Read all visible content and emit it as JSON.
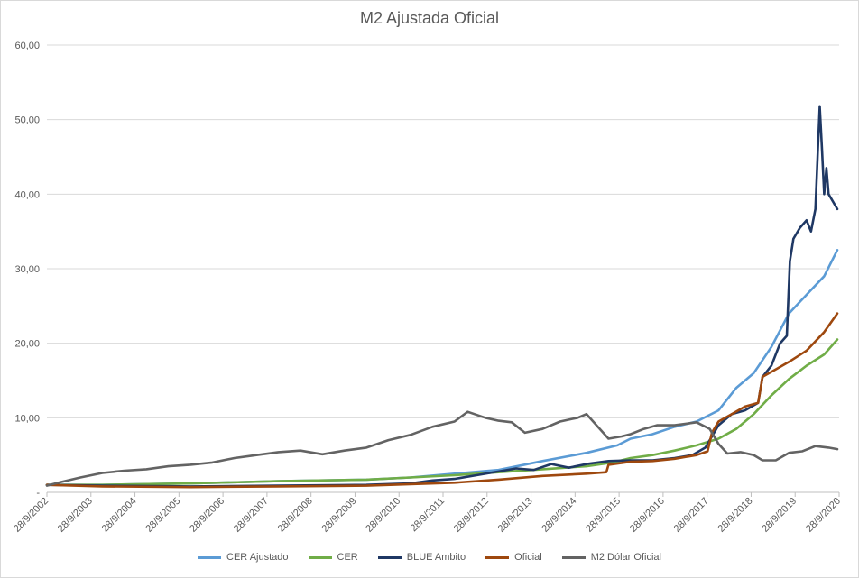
{
  "chart_data": {
    "type": "line",
    "title": "M2 Ajustada Oficial",
    "xlabel": "",
    "ylabel": "",
    "ylim": [
      0,
      60
    ],
    "yticks": [
      "-",
      "10,00",
      "20,00",
      "30,00",
      "40,00",
      "50,00",
      "60,00"
    ],
    "xticks": [
      "28/9/2002",
      "28/9/2003",
      "28/9/2004",
      "28/9/2005",
      "28/9/2006",
      "28/9/2007",
      "28/9/2008",
      "28/9/2009",
      "28/9/2010",
      "28/9/2011",
      "28/9/2012",
      "28/9/2013",
      "28/9/2014",
      "28/9/2015",
      "28/9/2016",
      "28/9/2017",
      "28/9/2018",
      "28/9/2019",
      "28/9/2020"
    ],
    "grid": "horizontal",
    "legend_position": "bottom",
    "series": [
      {
        "name": "CER Ajustado",
        "color": "#5b9bd5",
        "points": [
          [
            2002.74,
            1.0
          ],
          [
            2004,
            1.0
          ],
          [
            2006,
            1.2
          ],
          [
            2008,
            1.5
          ],
          [
            2010,
            1.7
          ],
          [
            2011,
            2.0
          ],
          [
            2012,
            2.5
          ],
          [
            2013,
            3.0
          ],
          [
            2014,
            4.2
          ],
          [
            2015,
            5.3
          ],
          [
            2015.7,
            6.3
          ],
          [
            2016,
            7.2
          ],
          [
            2016.5,
            7.8
          ],
          [
            2017,
            8.8
          ],
          [
            2017.5,
            9.5
          ],
          [
            2018,
            11.0
          ],
          [
            2018.4,
            14.0
          ],
          [
            2018.8,
            16.0
          ],
          [
            2019.2,
            19.5
          ],
          [
            2019.6,
            24.0
          ],
          [
            2020,
            26.5
          ],
          [
            2020.4,
            29.0
          ],
          [
            2020.7,
            32.5
          ]
        ]
      },
      {
        "name": "CER",
        "color": "#70ad47",
        "points": [
          [
            2002.74,
            1.0
          ],
          [
            2004,
            1.0
          ],
          [
            2006,
            1.2
          ],
          [
            2008,
            1.5
          ],
          [
            2010,
            1.7
          ],
          [
            2011,
            2.0
          ],
          [
            2012,
            2.3
          ],
          [
            2013,
            2.7
          ],
          [
            2014,
            3.1
          ],
          [
            2015,
            3.5
          ],
          [
            2015.6,
            4.0
          ],
          [
            2016,
            4.6
          ],
          [
            2016.5,
            5.0
          ],
          [
            2017,
            5.6
          ],
          [
            2017.5,
            6.3
          ],
          [
            2018,
            7.2
          ],
          [
            2018.4,
            8.5
          ],
          [
            2018.8,
            10.5
          ],
          [
            2019.2,
            13.0
          ],
          [
            2019.6,
            15.2
          ],
          [
            2020,
            17.0
          ],
          [
            2020.4,
            18.5
          ],
          [
            2020.7,
            20.5
          ]
        ]
      },
      {
        "name": "BLUE Ambito",
        "color": "#1f3864",
        "points": [
          [
            2002.74,
            1.0
          ],
          [
            2004,
            0.9
          ],
          [
            2006,
            0.8
          ],
          [
            2008,
            0.9
          ],
          [
            2010,
            1.0
          ],
          [
            2011,
            1.2
          ],
          [
            2011.5,
            1.6
          ],
          [
            2012,
            1.8
          ],
          [
            2012.5,
            2.3
          ],
          [
            2013,
            2.8
          ],
          [
            2013.4,
            3.2
          ],
          [
            2013.8,
            3.0
          ],
          [
            2014.2,
            3.8
          ],
          [
            2014.6,
            3.3
          ],
          [
            2015,
            3.8
          ],
          [
            2015.5,
            4.2
          ],
          [
            2016,
            4.3
          ],
          [
            2016.5,
            4.3
          ],
          [
            2017,
            4.6
          ],
          [
            2017.4,
            5.0
          ],
          [
            2017.7,
            6.0
          ],
          [
            2018,
            9.0
          ],
          [
            2018.3,
            10.5
          ],
          [
            2018.6,
            11.0
          ],
          [
            2018.9,
            12.0
          ],
          [
            2019.0,
            15.5
          ],
          [
            2019.2,
            17.0
          ],
          [
            2019.4,
            20.0
          ],
          [
            2019.55,
            21.0
          ],
          [
            2019.62,
            31.0
          ],
          [
            2019.7,
            34.0
          ],
          [
            2019.85,
            35.5
          ],
          [
            2020.0,
            36.5
          ],
          [
            2020.1,
            35.0
          ],
          [
            2020.2,
            38.0
          ],
          [
            2020.25,
            45.0
          ],
          [
            2020.3,
            51.8
          ],
          [
            2020.35,
            46.0
          ],
          [
            2020.4,
            40.0
          ],
          [
            2020.45,
            43.5
          ],
          [
            2020.5,
            40.0
          ],
          [
            2020.6,
            39.0
          ],
          [
            2020.7,
            38.0
          ]
        ]
      },
      {
        "name": "Oficial",
        "color": "#9e480e",
        "points": [
          [
            2002.74,
            1.0
          ],
          [
            2004,
            0.8
          ],
          [
            2006,
            0.7
          ],
          [
            2008,
            0.8
          ],
          [
            2010,
            0.9
          ],
          [
            2011,
            1.1
          ],
          [
            2012,
            1.3
          ],
          [
            2013,
            1.7
          ],
          [
            2014,
            2.2
          ],
          [
            2015,
            2.5
          ],
          [
            2015.45,
            2.7
          ],
          [
            2015.5,
            3.7
          ],
          [
            2016,
            4.1
          ],
          [
            2016.5,
            4.2
          ],
          [
            2017,
            4.5
          ],
          [
            2017.5,
            5.0
          ],
          [
            2017.75,
            5.5
          ],
          [
            2017.85,
            8.0
          ],
          [
            2018,
            9.5
          ],
          [
            2018.3,
            10.5
          ],
          [
            2018.6,
            11.5
          ],
          [
            2018.9,
            12.0
          ],
          [
            2019.0,
            15.5
          ],
          [
            2019.3,
            16.5
          ],
          [
            2019.6,
            17.5
          ],
          [
            2020,
            19.0
          ],
          [
            2020.4,
            21.5
          ],
          [
            2020.7,
            24.0
          ]
        ]
      },
      {
        "name": "M2 Dólar Oficial",
        "color": "#636363",
        "points": [
          [
            2002.74,
            0.9
          ],
          [
            2003,
            1.3
          ],
          [
            2003.5,
            2.0
          ],
          [
            2004,
            2.6
          ],
          [
            2004.5,
            2.9
          ],
          [
            2005,
            3.1
          ],
          [
            2005.5,
            3.5
          ],
          [
            2006,
            3.7
          ],
          [
            2006.5,
            4.0
          ],
          [
            2007,
            4.6
          ],
          [
            2007.5,
            5.0
          ],
          [
            2008,
            5.4
          ],
          [
            2008.5,
            5.6
          ],
          [
            2009,
            5.1
          ],
          [
            2009.5,
            5.6
          ],
          [
            2010,
            6.0
          ],
          [
            2010.5,
            7.0
          ],
          [
            2011,
            7.7
          ],
          [
            2011.5,
            8.8
          ],
          [
            2012,
            9.5
          ],
          [
            2012.3,
            10.8
          ],
          [
            2012.7,
            10.0
          ],
          [
            2013,
            9.6
          ],
          [
            2013.3,
            9.4
          ],
          [
            2013.6,
            8.0
          ],
          [
            2014,
            8.5
          ],
          [
            2014.4,
            9.5
          ],
          [
            2014.8,
            10.0
          ],
          [
            2015,
            10.5
          ],
          [
            2015.5,
            7.2
          ],
          [
            2015.8,
            7.5
          ],
          [
            2016,
            7.8
          ],
          [
            2016.3,
            8.5
          ],
          [
            2016.6,
            9.0
          ],
          [
            2017,
            9.0
          ],
          [
            2017.5,
            9.4
          ],
          [
            2017.8,
            8.5
          ],
          [
            2018,
            6.5
          ],
          [
            2018.2,
            5.2
          ],
          [
            2018.5,
            5.4
          ],
          [
            2018.8,
            5.0
          ],
          [
            2019.0,
            4.3
          ],
          [
            2019.3,
            4.3
          ],
          [
            2019.6,
            5.3
          ],
          [
            2019.9,
            5.5
          ],
          [
            2020.2,
            6.2
          ],
          [
            2020.5,
            6.0
          ],
          [
            2020.7,
            5.8
          ]
        ]
      }
    ]
  }
}
